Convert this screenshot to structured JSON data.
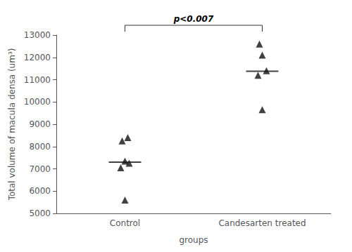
{
  "chart_data": {
    "type": "scatter",
    "categories": [
      "Control",
      "Candesarten treated"
    ],
    "values": [
      [
        5600,
        7050,
        7250,
        7350,
        8250,
        8400
      ],
      [
        9650,
        11200,
        11400,
        12100,
        12600
      ]
    ],
    "means": [
      7300,
      11380
    ],
    "marker": "triangle",
    "color": "#111111",
    "xlabel": "groups",
    "ylabel": "Total volume of macula densa (um³)",
    "ylim": [
      5000,
      13000
    ],
    "yticks": [
      5000,
      6000,
      7000,
      8000,
      9000,
      10000,
      11000,
      12000,
      13000
    ],
    "grid": false,
    "annotations": [
      {
        "text": "p<0.007",
        "between": [
          "Control",
          "Candesarten treated"
        ]
      }
    ]
  }
}
